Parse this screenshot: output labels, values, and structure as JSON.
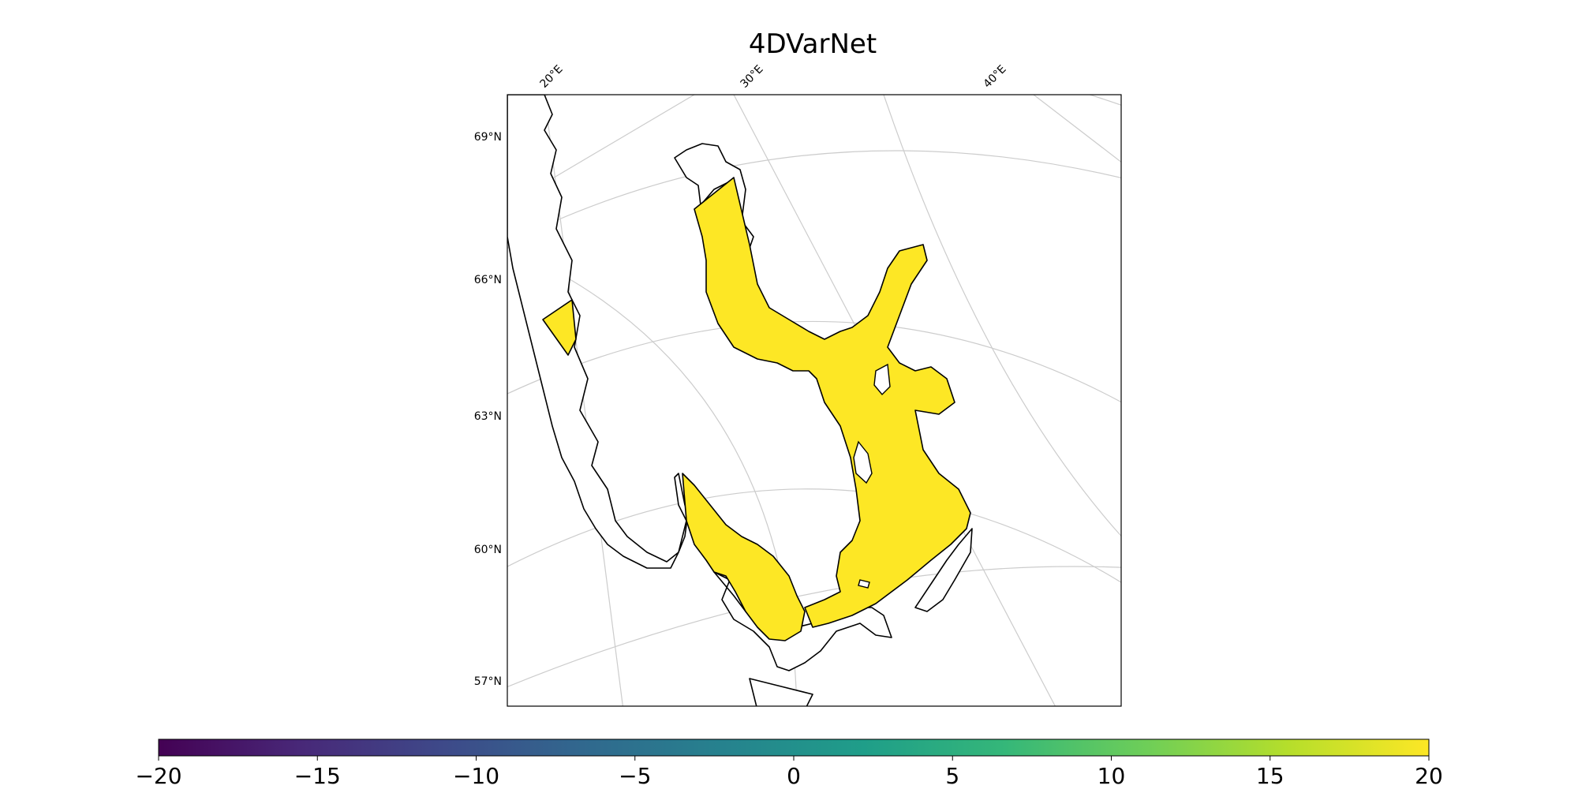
{
  "title": "4DVarNet",
  "map": {
    "latitude_labels": [
      "69°N",
      "66°N",
      "63°N",
      "60°N",
      "57°N"
    ],
    "longitude_labels": [
      "20°E",
      "30°E",
      "40°E"
    ],
    "projection": "stereographic",
    "gridlines": true,
    "coastline_color": "#000000",
    "field_color": "#fde725",
    "region": "Baltic Sea / Scandinavia"
  },
  "colorbar": {
    "colormap": "viridis",
    "min": -20,
    "max": 20,
    "ticks": [
      "−20",
      "−15",
      "−10",
      "−5",
      "0",
      "5",
      "10",
      "15",
      "20"
    ],
    "orientation": "horizontal",
    "stops": [
      "#440154",
      "#482878",
      "#3e4989",
      "#31688e",
      "#26828e",
      "#1f9e89",
      "#35b779",
      "#6ece58",
      "#b5de2b",
      "#fde725"
    ]
  }
}
